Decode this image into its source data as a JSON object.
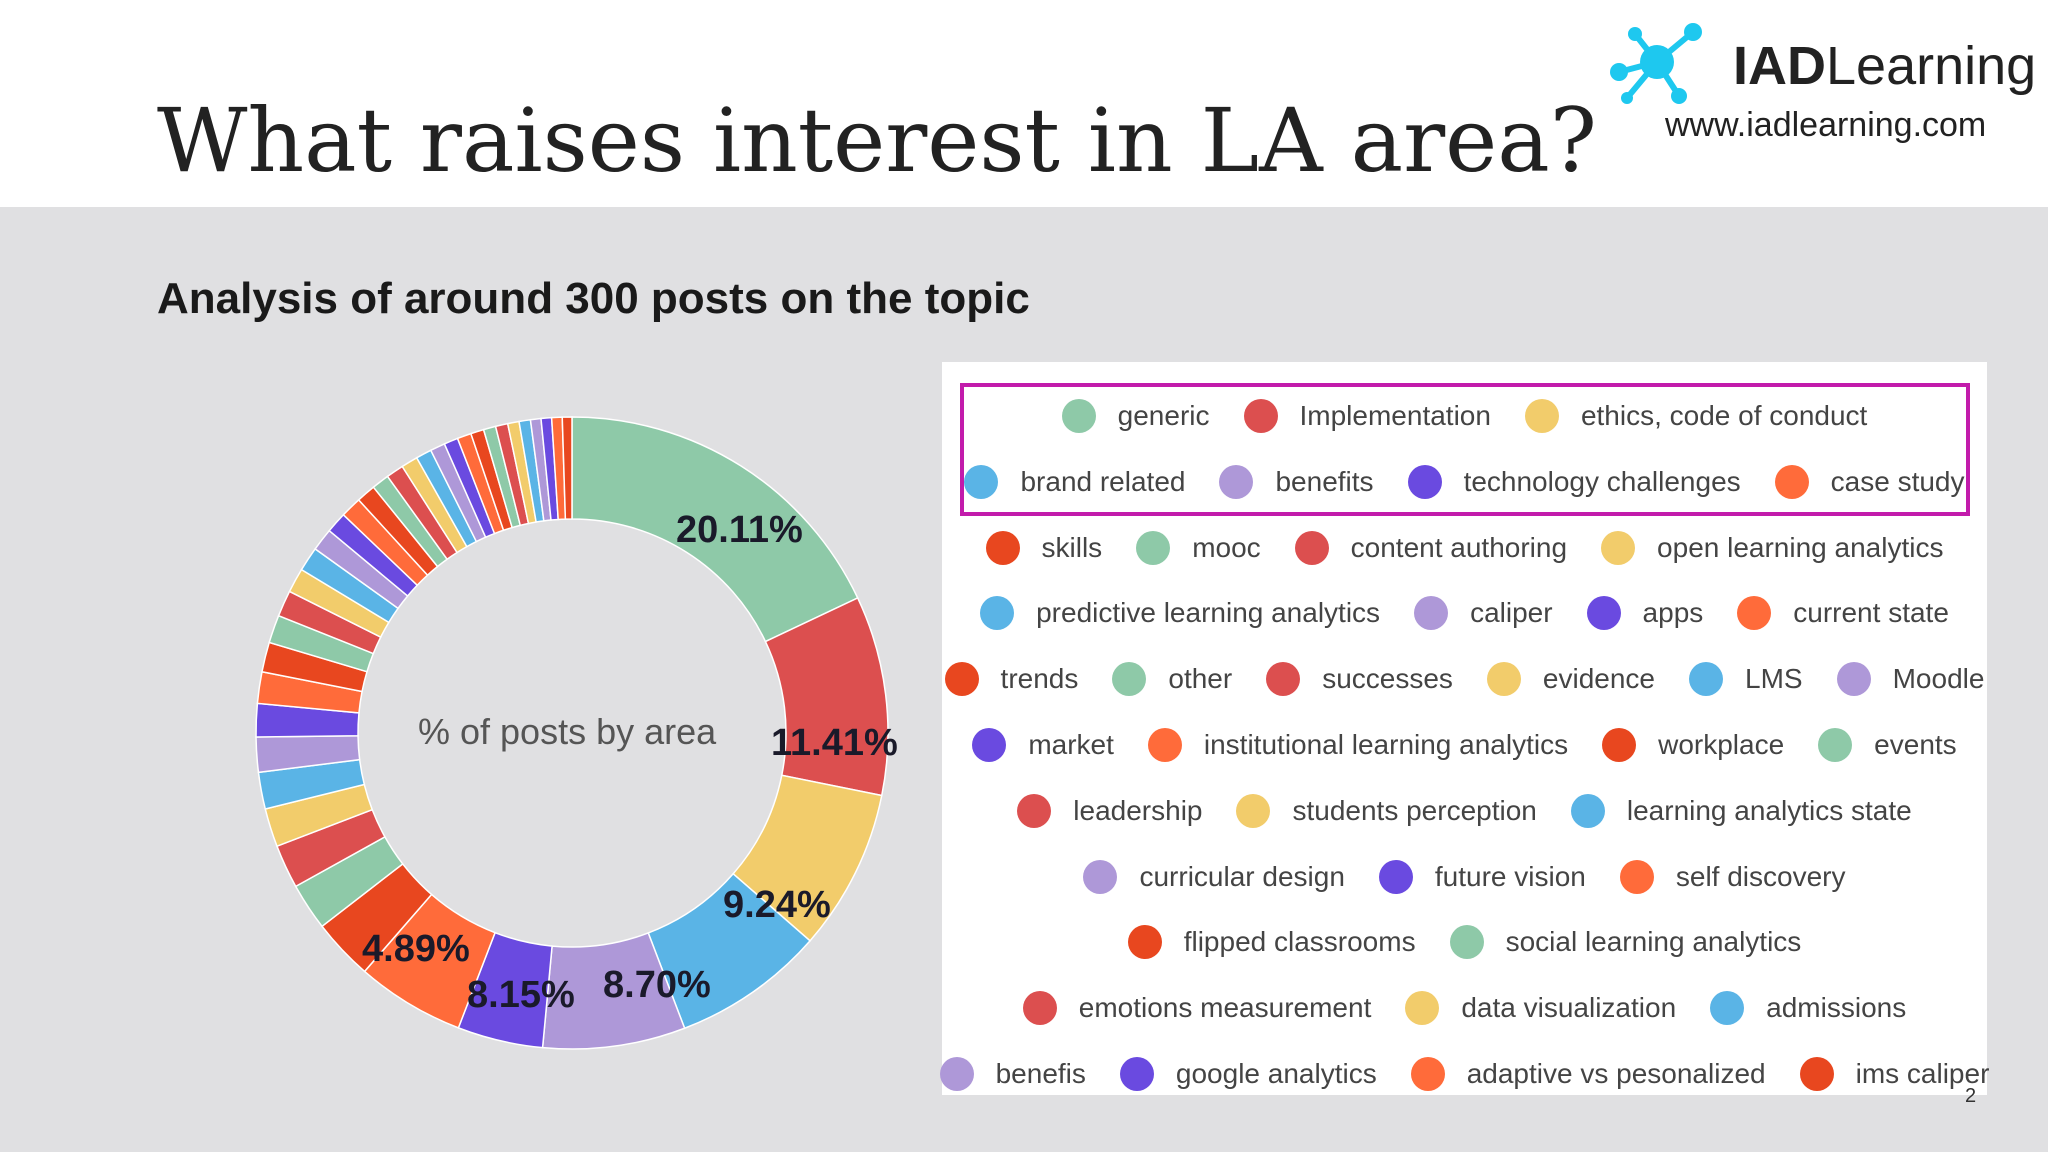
{
  "header": {
    "title": "What raises interest in LA area?",
    "logo_bold": "IAD",
    "logo_rest": "Learning",
    "logo_url": "www.iadlearning.com"
  },
  "subtitle": "Analysis of around 300 posts on the topic",
  "page_number": "2",
  "colors": {
    "highlight_border": "#c21bab",
    "logo_cyan": "#1ec8ef",
    "palette": [
      "#8ec9a8",
      "#dc4f4f",
      "#f2cc6b",
      "#5ab4e6",
      "#ae98d8",
      "#6a4ae0",
      "#ff6b3a",
      "#e8471f"
    ]
  },
  "chart_data": {
    "type": "pie",
    "style": "donut",
    "center_label": "% of posts by area",
    "labeled_slices": [
      {
        "name": "generic",
        "value": 20.11,
        "label": "20.11%"
      },
      {
        "name": "Implementation",
        "value": 11.41,
        "label": "11.41%"
      },
      {
        "name": "ethics, code of conduct",
        "value": 9.24,
        "label": "9.24%"
      },
      {
        "name": "brand related",
        "value": 8.7,
        "label": "8.70%"
      },
      {
        "name": "benefits",
        "value": 8.15,
        "label": "8.15%"
      },
      {
        "name": "technology challenges",
        "value": 4.89,
        "label": "4.89%"
      }
    ],
    "unlabeled_slice_values": [
      6.2,
      3.5,
      2.7,
      2.5,
      2.2,
      2.1,
      2.0,
      1.9,
      1.8,
      1.7,
      1.6,
      1.5,
      1.4,
      1.4,
      1.3,
      1.2,
      1.2,
      1.1,
      1.0,
      1.0,
      0.95,
      0.9,
      0.85,
      0.8,
      0.8,
      0.75,
      0.7,
      0.7,
      0.65,
      0.65,
      0.6,
      0.6,
      0.6,
      0.55
    ],
    "legend": [
      {
        "label": "generic",
        "color": "#8ec9a8"
      },
      {
        "label": "Implementation",
        "color": "#dc4f4f"
      },
      {
        "label": "ethics, code of conduct",
        "color": "#f2cc6b"
      },
      {
        "label": "brand related",
        "color": "#5ab4e6"
      },
      {
        "label": "benefits",
        "color": "#ae98d8"
      },
      {
        "label": "technology challenges",
        "color": "#6a4ae0"
      },
      {
        "label": "case study",
        "color": "#ff6b3a"
      },
      {
        "label": "skills",
        "color": "#e8471f"
      },
      {
        "label": "mooc",
        "color": "#8ec9a8"
      },
      {
        "label": "content authoring",
        "color": "#dc4f4f"
      },
      {
        "label": "open learning analytics",
        "color": "#f2cc6b"
      },
      {
        "label": "predictive learning analytics",
        "color": "#5ab4e6"
      },
      {
        "label": "caliper",
        "color": "#ae98d8"
      },
      {
        "label": "apps",
        "color": "#6a4ae0"
      },
      {
        "label": "current state",
        "color": "#ff6b3a"
      },
      {
        "label": "trends",
        "color": "#e8471f"
      },
      {
        "label": "other",
        "color": "#8ec9a8"
      },
      {
        "label": "successes",
        "color": "#dc4f4f"
      },
      {
        "label": "evidence",
        "color": "#f2cc6b"
      },
      {
        "label": "LMS",
        "color": "#5ab4e6"
      },
      {
        "label": "Moodle",
        "color": "#ae98d8"
      },
      {
        "label": "market",
        "color": "#6a4ae0"
      },
      {
        "label": "institutional learning analytics",
        "color": "#ff6b3a"
      },
      {
        "label": "workplace",
        "color": "#e8471f"
      },
      {
        "label": "events",
        "color": "#8ec9a8"
      },
      {
        "label": "leadership",
        "color": "#dc4f4f"
      },
      {
        "label": "students perception",
        "color": "#f2cc6b"
      },
      {
        "label": "learning analytics state",
        "color": "#5ab4e6"
      },
      {
        "label": "curricular design",
        "color": "#ae98d8"
      },
      {
        "label": "future vision",
        "color": "#6a4ae0"
      },
      {
        "label": "self discovery",
        "color": "#ff6b3a"
      },
      {
        "label": "flipped classrooms",
        "color": "#e8471f"
      },
      {
        "label": "social learning analytics",
        "color": "#8ec9a8"
      },
      {
        "label": "emotions measurement",
        "color": "#dc4f4f"
      },
      {
        "label": "data visualization",
        "color": "#f2cc6b"
      },
      {
        "label": "admissions",
        "color": "#5ab4e6"
      },
      {
        "label": "benefis",
        "color": "#ae98d8"
      },
      {
        "label": "google analytics",
        "color": "#6a4ae0"
      },
      {
        "label": "adaptive vs pesonalized",
        "color": "#ff6b3a"
      },
      {
        "label": "ims caliper",
        "color": "#e8471f"
      }
    ],
    "legend_rows": [
      3,
      4,
      4,
      4,
      6,
      4,
      3,
      3,
      2,
      3,
      4
    ],
    "highlighted_legend_items": 7
  }
}
